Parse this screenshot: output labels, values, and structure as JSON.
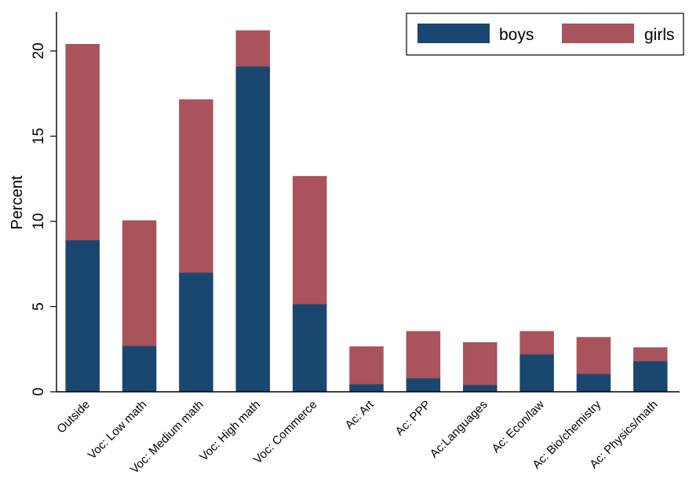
{
  "chart_data": {
    "type": "bar",
    "stacked": true,
    "categories": [
      "Outside",
      "Voc: Low math",
      "Voc: Medium math",
      "Voc: High math",
      "Voc: Commerce",
      "Ac: Art",
      "Ac: PPP",
      "Ac:Languages",
      "Ac: Econ/law",
      "Ac: Bio/chemistry",
      "Ac: Physics/math"
    ],
    "series": [
      {
        "name": "boys",
        "color": "#1a476f",
        "values": [
          8.9,
          2.7,
          7.0,
          19.1,
          5.15,
          0.45,
          0.8,
          0.4,
          2.2,
          1.05,
          1.8
        ]
      },
      {
        "name": "girls",
        "color": "#a9535c",
        "values": [
          11.5,
          7.35,
          10.15,
          2.1,
          7.5,
          2.2,
          2.75,
          2.5,
          1.35,
          2.15,
          0.8
        ]
      }
    ],
    "title": "",
    "xlabel": "",
    "ylabel": "Percent",
    "ylim": [
      0,
      22.3
    ],
    "yticks": [
      "0",
      "5",
      "10",
      "15",
      "20"
    ],
    "grid": false,
    "legend_position": "top-right"
  }
}
